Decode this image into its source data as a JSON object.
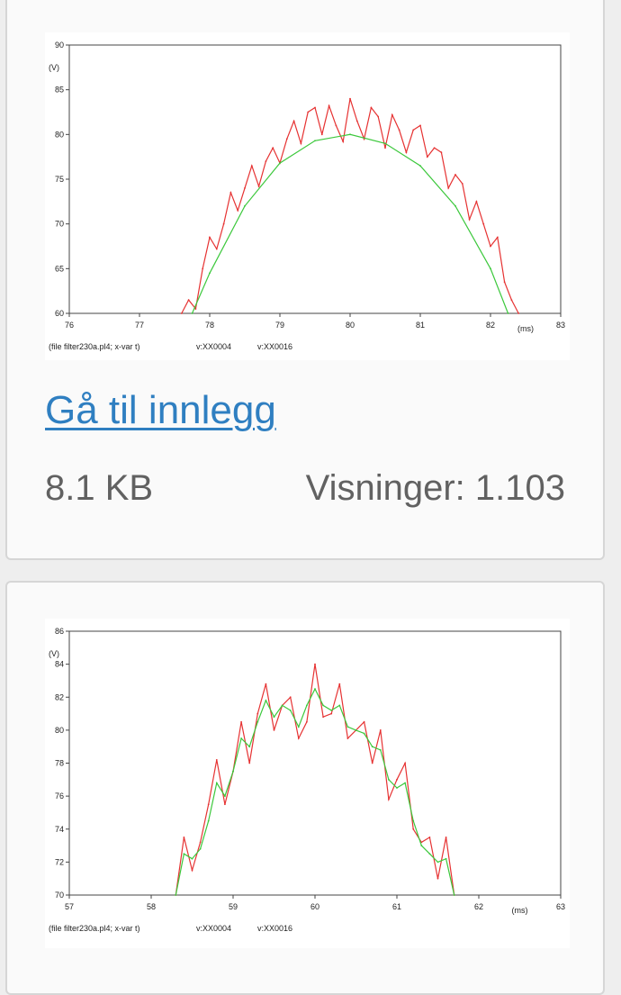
{
  "cards": [
    {
      "link_label": "Gå til innlegg",
      "file_size": "8.1 KB",
      "views_label": "Visninger: 1.103",
      "chart_data": {
        "type": "line",
        "title": "",
        "xlabel": "(ms)",
        "ylabel": "(V)",
        "xlim": [
          76,
          83
        ],
        "ylim": [
          60,
          90
        ],
        "x_ticks": [
          76,
          77,
          78,
          79,
          80,
          81,
          82,
          83
        ],
        "y_ticks": [
          60,
          65,
          70,
          75,
          80,
          85,
          90
        ],
        "footer": "(file filter230a.pl4; x-var t)",
        "grid": false,
        "series": [
          {
            "name": "v:XX0004",
            "color": "#e63232",
            "x": [
              77.6,
              77.7,
              77.8,
              77.9,
              78.0,
              78.1,
              78.2,
              78.3,
              78.4,
              78.5,
              78.6,
              78.7,
              78.8,
              78.9,
              79.0,
              79.1,
              79.2,
              79.3,
              79.4,
              79.5,
              79.6,
              79.7,
              79.8,
              79.9,
              80.0,
              80.1,
              80.2,
              80.3,
              80.4,
              80.5,
              80.6,
              80.7,
              80.8,
              80.9,
              81.0,
              81.1,
              81.2,
              81.3,
              81.4,
              81.5,
              81.6,
              81.7,
              81.8,
              81.9,
              82.0,
              82.1,
              82.2,
              82.3,
              82.4
            ],
            "values": [
              60.0,
              61.5,
              60.5,
              65.0,
              68.5,
              67.2,
              70.0,
              73.5,
              71.5,
              74.0,
              76.5,
              74.2,
              77.0,
              78.5,
              76.8,
              79.5,
              81.5,
              79.0,
              82.5,
              83.0,
              80.0,
              83.2,
              81.0,
              79.2,
              84.0,
              81.5,
              79.5,
              83.0,
              82.0,
              78.5,
              82.2,
              80.5,
              78.0,
              80.5,
              81.0,
              77.5,
              78.5,
              78.0,
              74.0,
              75.5,
              74.5,
              70.5,
              72.5,
              70.0,
              67.5,
              68.5,
              63.5,
              61.5,
              60.0
            ]
          },
          {
            "name": "v:XX0016",
            "color": "#3cc83c",
            "x": [
              77.75,
              78.0,
              78.5,
              79.0,
              79.5,
              80.0,
              80.5,
              81.0,
              81.5,
              82.0,
              82.25
            ],
            "values": [
              60.0,
              64.5,
              72.0,
              76.8,
              79.3,
              80.0,
              79.0,
              76.5,
              72.0,
              65.0,
              60.0
            ]
          }
        ]
      }
    },
    {
      "chart_data": {
        "type": "line",
        "title": "",
        "xlabel": "(ms)",
        "ylabel": "(V)",
        "xlim": [
          57,
          63
        ],
        "ylim": [
          70,
          86
        ],
        "x_ticks": [
          57,
          58,
          59,
          60,
          61,
          62,
          63
        ],
        "y_ticks": [
          70,
          72,
          74,
          76,
          78,
          80,
          82,
          84,
          86
        ],
        "footer": "(file filter230a.pl4; x-var t)",
        "grid": false,
        "series": [
          {
            "name": "v:XX0004",
            "color": "#e63232",
            "x": [
              58.3,
              58.4,
              58.5,
              58.6,
              58.7,
              58.8,
              58.9,
              59.0,
              59.1,
              59.2,
              59.3,
              59.4,
              59.5,
              59.6,
              59.7,
              59.8,
              59.9,
              60.0,
              60.1,
              60.2,
              60.3,
              60.4,
              60.5,
              60.6,
              60.7,
              60.8,
              60.9,
              61.0,
              61.1,
              61.2,
              61.3,
              61.4,
              61.5,
              61.6,
              61.7
            ],
            "values": [
              70.0,
              73.5,
              71.5,
              73.2,
              75.5,
              78.2,
              75.5,
              77.5,
              80.5,
              78.0,
              81.0,
              82.8,
              80.0,
              81.5,
              82.0,
              79.5,
              80.5,
              84.0,
              80.8,
              81.0,
              82.8,
              79.5,
              80.0,
              80.5,
              78.0,
              80.0,
              75.8,
              77.0,
              78.0,
              74.0,
              73.2,
              73.5,
              71.0,
              73.5,
              70.0
            ]
          },
          {
            "name": "v:XX0016",
            "color": "#3cc83c",
            "x": [
              58.3,
              58.4,
              58.5,
              58.6,
              58.7,
              58.8,
              58.9,
              59.0,
              59.1,
              59.2,
              59.3,
              59.4,
              59.5,
              59.6,
              59.7,
              59.8,
              59.9,
              60.0,
              60.1,
              60.2,
              60.3,
              60.4,
              60.5,
              60.6,
              60.7,
              60.8,
              60.9,
              61.0,
              61.1,
              61.2,
              61.3,
              61.4,
              61.5,
              61.6,
              61.7
            ],
            "values": [
              70.0,
              72.5,
              72.2,
              72.8,
              74.5,
              76.8,
              76.0,
              77.5,
              79.5,
              79.0,
              80.5,
              81.8,
              80.8,
              81.5,
              81.2,
              80.2,
              81.5,
              82.5,
              81.5,
              81.2,
              81.5,
              80.2,
              80.0,
              79.8,
              79.0,
              78.8,
              77.0,
              76.5,
              76.8,
              74.5,
              73.0,
              72.5,
              72.0,
              72.2,
              70.0
            ]
          }
        ]
      }
    }
  ]
}
